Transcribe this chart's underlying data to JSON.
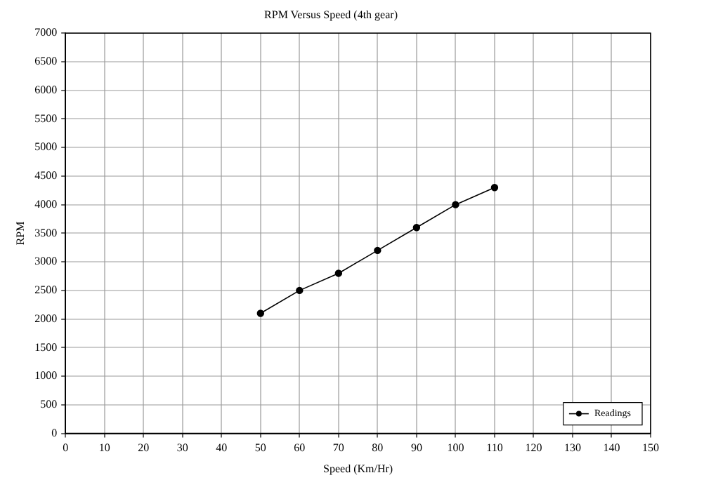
{
  "chart_data": {
    "type": "line",
    "title": "RPM Versus Speed (4th gear)",
    "xlabel": "Speed (Km/Hr)",
    "ylabel": "RPM",
    "x": [
      50,
      60,
      70,
      80,
      90,
      100,
      110
    ],
    "series": [
      {
        "name": "Readings",
        "color": "#000000",
        "values": [
          2100,
          2500,
          2800,
          3200,
          3600,
          4000,
          4300
        ]
      }
    ],
    "xlim": [
      0,
      150
    ],
    "xticks": [
      0,
      10,
      20,
      30,
      40,
      50,
      60,
      70,
      80,
      90,
      100,
      110,
      120,
      130,
      140,
      150
    ],
    "ylim": [
      0,
      7000
    ],
    "yticks": [
      0,
      500,
      1000,
      1500,
      2000,
      2500,
      3000,
      3500,
      4000,
      4500,
      5000,
      5500,
      6000,
      6500,
      7000
    ],
    "grid": true,
    "legend": "bottom right",
    "marker": "circle",
    "line_style": "solid"
  }
}
